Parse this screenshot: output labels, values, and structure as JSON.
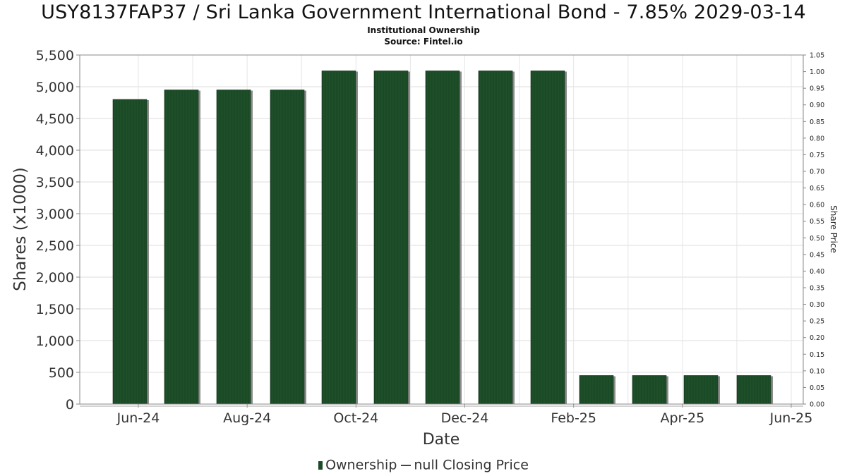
{
  "chart_data": {
    "type": "bar",
    "title": "USY8137FAP37 / Sri Lanka Government International Bond - 7.85% 2029-03-14",
    "subtitle_lines": [
      "Institutional Ownership",
      "Source: Fintel.io"
    ],
    "xlabel": "Date",
    "ylabel": "Shares (x1000)",
    "y2label": "Share Price",
    "x_tick_labels": [
      "Jun-24",
      "Aug-24",
      "Oct-24",
      "Dec-24",
      "Feb-25",
      "Apr-25",
      "Jun-25"
    ],
    "ylim": [
      0,
      5500
    ],
    "y_ticks": [
      0,
      500,
      1000,
      1500,
      2000,
      2500,
      3000,
      3500,
      4000,
      4500,
      5000,
      5500
    ],
    "y2lim": [
      0.0,
      1.05
    ],
    "y2_ticks": [
      "0.00",
      "0.05",
      "0.10",
      "0.15",
      "0.20",
      "0.25",
      "0.30",
      "0.35",
      "0.40",
      "0.45",
      "0.50",
      "0.55",
      "0.60",
      "0.65",
      "0.70",
      "0.75",
      "0.80",
      "0.85",
      "0.90",
      "0.95",
      "1.00",
      "1.05"
    ],
    "grid": true,
    "legend_position": "bottom",
    "series": [
      {
        "name": "Ownership",
        "color": "#1b4a26",
        "values": [
          4800,
          4950,
          4950,
          4950,
          5250,
          5250,
          5250,
          5250,
          5250,
          450,
          450,
          450,
          450
        ]
      }
    ],
    "legend": [
      "Ownership",
      "null Closing Price"
    ]
  }
}
